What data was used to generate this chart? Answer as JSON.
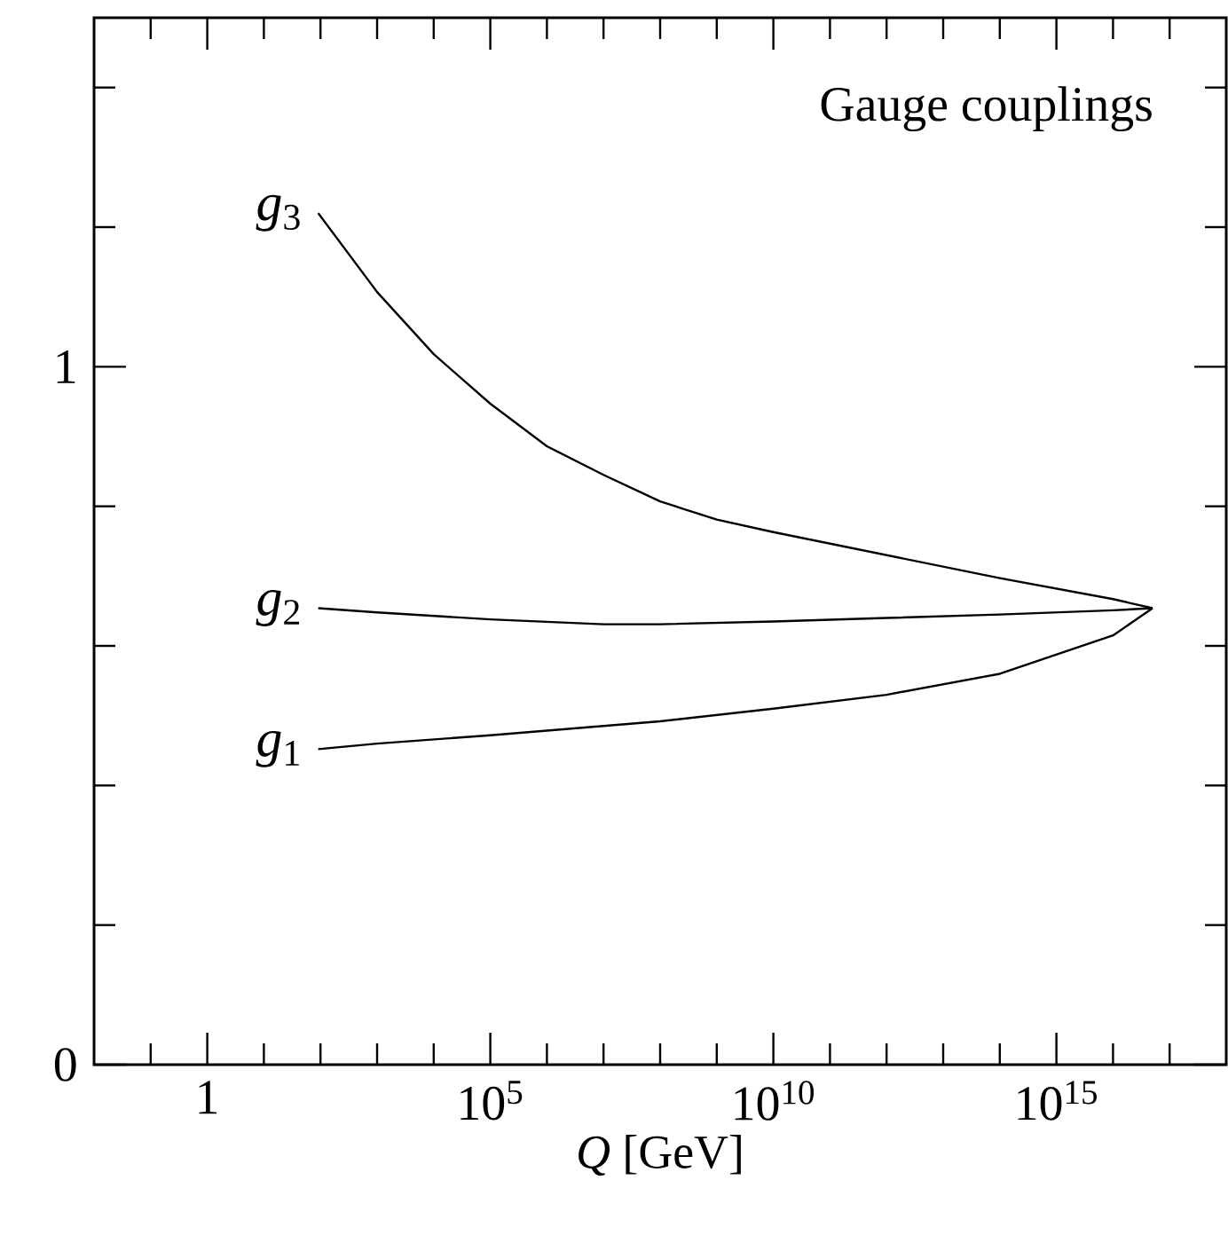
{
  "chart_data": {
    "type": "line",
    "title": "Gauge couplings",
    "xlabel": "*Q* [GeV]",
    "log": "x",
    "xlim": [
      0.01,
      1e+18
    ],
    "ylim": [
      0,
      1.5
    ],
    "xticks": [
      {
        "value": 0.1,
        "label": null
      },
      1,
      {
        "value": 10,
        "label": null
      },
      {
        "value": 100,
        "label": null
      },
      {
        "value": 1000,
        "label": null
      },
      {
        "value": 10000,
        "label": null
      },
      {
        "value": 100000,
        "label": "10$^{5}$"
      },
      {
        "value": 1000000.0,
        "label": null
      },
      {
        "value": 10000000.0,
        "label": null
      },
      {
        "value": 100000000.0,
        "label": null
      },
      {
        "value": 1000000000.0,
        "label": null
      },
      {
        "value": 10000000000.0,
        "label": "10$^{10}$"
      },
      {
        "value": 100000000000.0,
        "label": null
      },
      {
        "value": 1000000000000.0,
        "label": null
      },
      {
        "value": 10000000000000.0,
        "label": null
      },
      {
        "value": 100000000000000.0,
        "label": null
      },
      {
        "value": 1000000000000000.0,
        "label": "10$^{15}$"
      },
      {
        "value": 1e+16,
        "label": null
      },
      {
        "value": 1e+17,
        "label": null
      }
    ],
    "yticks": [
      0,
      {
        "value": 0.2,
        "label": null
      },
      {
        "value": 0.4,
        "label": null
      },
      {
        "value": 0.6,
        "label": null
      },
      {
        "value": 0.8,
        "label": null
      },
      1,
      {
        "value": 1.2,
        "label": null
      },
      {
        "value": 1.4,
        "label": null
      }
    ],
    "marker": "none",
    "line_style": "solid",
    "grid": false,
    "series": [
      {
        "name": "*g*$_{3}$",
        "color": "#000000",
        "x": [
          91.2,
          1000.0,
          10000.0,
          100000.0,
          1000000.0,
          10000000.0,
          100000000.0,
          1000000000.0,
          10000000000.0,
          1000000000000.0,
          100000000000000.0,
          1e+16,
          5e+16
        ],
        "values": [
          1.22,
          1.107,
          1.018,
          0.947,
          0.886,
          0.845,
          0.807,
          0.781,
          0.763,
          0.73,
          0.697,
          0.667,
          0.654
        ]
      },
      {
        "name": "*g*$_{2}$",
        "color": "#000000",
        "x": [
          91.2,
          1000.0,
          100000.0,
          10000000.0,
          100000000.0,
          10000000000.0,
          1000000000000.0,
          100000000000000.0,
          1e+16,
          5e+16
        ],
        "values": [
          0.654,
          0.648,
          0.638,
          0.631,
          0.631,
          0.635,
          0.64,
          0.645,
          0.651,
          0.654
        ]
      },
      {
        "name": "*g*$_{1}$",
        "color": "#000000",
        "x": [
          91.2,
          1000.0,
          100000.0,
          100000000.0,
          10000000000.0,
          1000000000000.0,
          100000000000000.0,
          1e+16,
          5e+16
        ],
        "values": [
          0.452,
          0.46,
          0.472,
          0.492,
          0.51,
          0.53,
          0.56,
          0.615,
          0.654
        ]
      }
    ]
  }
}
